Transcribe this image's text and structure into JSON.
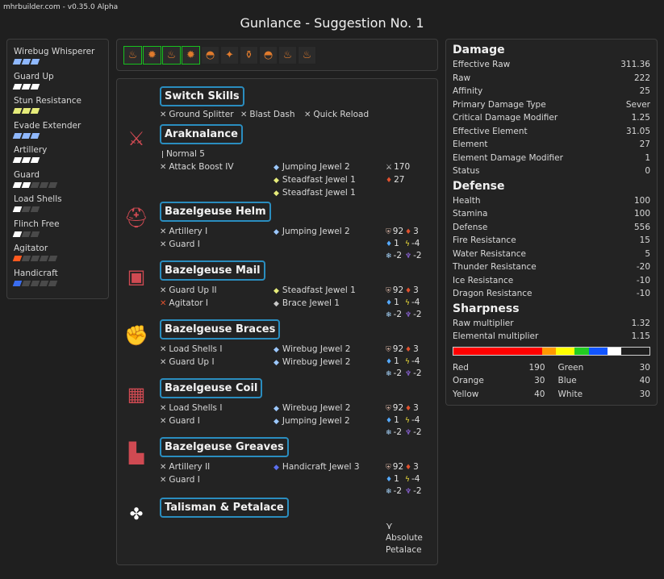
{
  "version": "mhrbuilder.com - v0.35.0 Alpha",
  "title": "Gunlance - Suggestion No. 1",
  "skills": [
    {
      "name": "Wirebug Whisperer",
      "filled": 3,
      "total": 3,
      "color": "#8fb8ff"
    },
    {
      "name": "Guard Up",
      "filled": 3,
      "total": 3,
      "color": "#ffffff"
    },
    {
      "name": "Stun Resistance",
      "filled": 3,
      "total": 3,
      "color": "#e6ec7a"
    },
    {
      "name": "Evade Extender",
      "filled": 3,
      "total": 3,
      "color": "#8fb8ff"
    },
    {
      "name": "Artillery",
      "filled": 3,
      "total": 3,
      "color": "#ffffff"
    },
    {
      "name": "Guard",
      "filled": 2,
      "total": 5,
      "color": "#ffffff"
    },
    {
      "name": "Load Shells",
      "filled": 1,
      "total": 3,
      "color": "#ffffff"
    },
    {
      "name": "Flinch Free",
      "filled": 1,
      "total": 3,
      "color": "#ffffff"
    },
    {
      "name": "Agitator",
      "filled": 1,
      "total": 5,
      "color": "#ff5a1f"
    },
    {
      "name": "Handicraft",
      "filled": 1,
      "total": 5,
      "color": "#3a6df0"
    }
  ],
  "slots": [
    {
      "icon": "♨",
      "selected": true
    },
    {
      "icon": "✹",
      "selected": true
    },
    {
      "icon": "♨",
      "selected": true
    },
    {
      "icon": "✹",
      "selected": true
    },
    {
      "icon": "◓",
      "selected": false
    },
    {
      "icon": "✦",
      "selected": false
    },
    {
      "icon": "⚱",
      "selected": false
    },
    {
      "icon": "◓",
      "selected": false
    },
    {
      "icon": "♨",
      "selected": false
    },
    {
      "icon": "♨",
      "selected": false
    }
  ],
  "switch_skills": {
    "title": "Switch Skills",
    "items": [
      "Ground Splitter",
      "Blast Dash",
      "Quick Reload"
    ]
  },
  "weapon": {
    "name": "Araknalance",
    "shell": "Normal 5",
    "skill": "Attack Boost IV",
    "jewels": [
      "Jumping Jewel 2",
      "Steadfast Jewel 1",
      "Steadfast Jewel 1"
    ],
    "attack": "170",
    "element": "27"
  },
  "armor": [
    {
      "name": "Bazelgeuse Helm",
      "icon": "⛑",
      "skills": [
        {
          "name": "Artillery I",
          "red": false
        },
        {
          "name": "Guard I",
          "red": false
        }
      ],
      "jewels": [
        "Jumping Jewel 2"
      ],
      "defense": "92",
      "fire": "3",
      "water": "1",
      "thunder": "-4",
      "ice": "-2",
      "dragon": "-2"
    },
    {
      "name": "Bazelgeuse Mail",
      "icon": "▣",
      "skills": [
        {
          "name": "Guard Up II",
          "red": false
        },
        {
          "name": "Agitator I",
          "red": true
        }
      ],
      "jewels": [
        "Steadfast Jewel 1",
        "Brace Jewel 1"
      ],
      "defense": "92",
      "fire": "3",
      "water": "1",
      "thunder": "-4",
      "ice": "-2",
      "dragon": "-2"
    },
    {
      "name": "Bazelgeuse Braces",
      "icon": "✊",
      "skills": [
        {
          "name": "Load Shells I",
          "red": false
        },
        {
          "name": "Guard Up I",
          "red": false
        }
      ],
      "jewels": [
        "Wirebug Jewel 2",
        "Wirebug Jewel 2"
      ],
      "defense": "92",
      "fire": "3",
      "water": "1",
      "thunder": "-4",
      "ice": "-2",
      "dragon": "-2"
    },
    {
      "name": "Bazelgeuse Coil",
      "icon": "▦",
      "skills": [
        {
          "name": "Load Shells I",
          "red": false
        },
        {
          "name": "Guard I",
          "red": false
        }
      ],
      "jewels": [
        "Wirebug Jewel 2",
        "Jumping Jewel 2"
      ],
      "defense": "92",
      "fire": "3",
      "water": "1",
      "thunder": "-4",
      "ice": "-2",
      "dragon": "-2"
    },
    {
      "name": "Bazelgeuse Greaves",
      "icon": "▙",
      "skills": [
        {
          "name": "Artillery II",
          "red": false
        },
        {
          "name": "Guard I",
          "red": false
        }
      ],
      "jewels": [
        "Handicraft Jewel 3"
      ],
      "defense": "92",
      "fire": "3",
      "water": "1",
      "thunder": "-4",
      "ice": "-2",
      "dragon": "-2"
    }
  ],
  "talisman": {
    "name": "Talisman & Petalace",
    "petalace_line1": "Absolute",
    "petalace_line2": "Petalace"
  },
  "stats": {
    "damage_title": "Damage",
    "damage": [
      [
        "Effective Raw",
        "311.36"
      ],
      [
        "Raw",
        "222"
      ],
      [
        "Affinity",
        "25"
      ],
      [
        "Primary Damage Type",
        "Sever"
      ],
      [
        "Critical Damage Modifier",
        "1.25"
      ],
      [
        "Effective Element",
        "31.05"
      ],
      [
        "Element",
        "27"
      ],
      [
        "Element Damage Modifier",
        "1"
      ],
      [
        "Status",
        "0"
      ]
    ],
    "defense_title": "Defense",
    "defense": [
      [
        "Health",
        "100"
      ],
      [
        "Stamina",
        "100"
      ],
      [
        "Defense",
        "556"
      ],
      [
        "Fire Resistance",
        "15"
      ],
      [
        "Water Resistance",
        "5"
      ],
      [
        "Thunder Resistance",
        "-20"
      ],
      [
        "Ice Resistance",
        "-10"
      ],
      [
        "Dragon Resistance",
        "-10"
      ]
    ],
    "sharpness_title": "Sharpness",
    "sharpness_rows": [
      [
        "Raw multiplier",
        "1.32"
      ],
      [
        "Elemental multiplier",
        "1.15"
      ]
    ],
    "sharpness_bar": [
      {
        "color": "#ff0000",
        "value": 190
      },
      {
        "color": "#ff9900",
        "value": 30
      },
      {
        "color": "#ffff00",
        "value": 40
      },
      {
        "color": "#22cc22",
        "value": 30
      },
      {
        "color": "#1155ff",
        "value": 40
      },
      {
        "color": "#ffffff",
        "value": 30
      }
    ],
    "sharpness_max": 420,
    "sharpness_values": {
      "red": [
        "Red",
        "190"
      ],
      "green": [
        "Green",
        "30"
      ],
      "orange": [
        "Orange",
        "30"
      ],
      "blue": [
        "Blue",
        "40"
      ],
      "yellow": [
        "Yellow",
        "40"
      ],
      "white": [
        "White",
        "30"
      ]
    }
  }
}
